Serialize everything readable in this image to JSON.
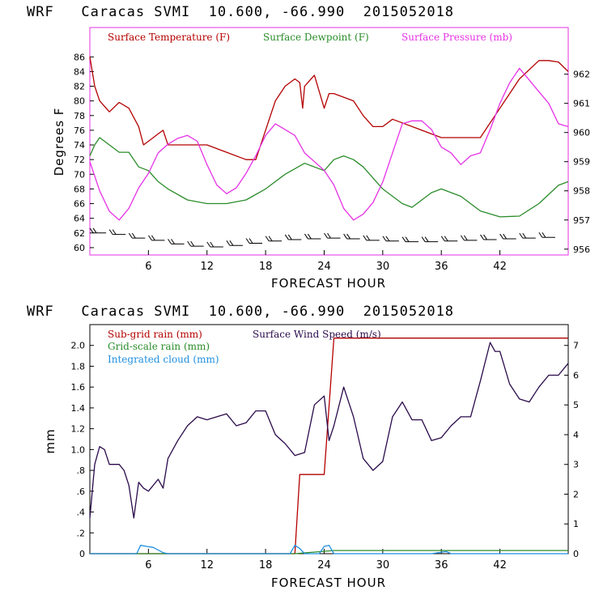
{
  "chart_data": [
    {
      "type": "line",
      "title": "WRF   Caracas SVMI  10.600, -66.990  2015052018",
      "xlabel": "FORECAST HOUR",
      "ylabel": "Degrees F",
      "xlim": [
        0,
        49
      ],
      "xticks": [
        "6",
        "12",
        "18",
        "24",
        "30",
        "36",
        "42"
      ],
      "ylim": [
        59,
        90
      ],
      "yticks": [
        "60",
        "62",
        "64",
        "66",
        "68",
        "70",
        "72",
        "74",
        "76",
        "78",
        "80",
        "82",
        "84",
        "86"
      ],
      "y2lim": [
        955.8,
        963.6
      ],
      "y2ticks": [
        "956",
        "957",
        "958",
        "959",
        "960",
        "961",
        "962"
      ],
      "legend": [
        "Surface Temperature (F)",
        "Surface Dewpoint (F)",
        "Surface Pressure (mb)"
      ],
      "colors": {
        "temperature": "#b40000",
        "dewpoint": "#2a8c2a",
        "pressure": "#e632e6",
        "wind": "#000000"
      },
      "series": [
        {
          "name": "Surface Temperature (F)",
          "axis": "left",
          "x": [
            0,
            0.5,
            1,
            2,
            3,
            4,
            5,
            5.5,
            6,
            7,
            7.5,
            8,
            10,
            12,
            14,
            16,
            17,
            18,
            19,
            20,
            21,
            21.5,
            21.8,
            22,
            23,
            24,
            24.5,
            25,
            26,
            27,
            28,
            29,
            30,
            31,
            32,
            34,
            36,
            38,
            40,
            42,
            44,
            46,
            47,
            48,
            49
          ],
          "y": [
            86,
            82,
            80,
            78.5,
            79.8,
            79,
            76.5,
            74,
            74.5,
            75.5,
            76,
            74,
            74,
            74,
            73,
            72,
            72,
            76,
            80,
            82,
            83,
            82.5,
            79,
            82,
            83.5,
            79,
            81,
            81,
            80.5,
            80,
            78,
            76.5,
            76.5,
            77.5,
            77,
            76,
            75,
            75,
            75,
            79,
            83,
            85.5,
            85.5,
            85.3,
            84
          ]
        },
        {
          "name": "Surface Dewpoint (F)",
          "axis": "left",
          "x": [
            0,
            0.5,
            1,
            1.5,
            2,
            3,
            4,
            5,
            6,
            7,
            8,
            10,
            12,
            14,
            16,
            18,
            20,
            22,
            24,
            25,
            26,
            27,
            28,
            30,
            32,
            33,
            35,
            36,
            38,
            40,
            42,
            44,
            46,
            48,
            49
          ],
          "y": [
            72.5,
            74,
            75,
            74.5,
            74,
            73,
            73,
            71,
            70.5,
            69,
            68,
            66.5,
            66,
            66,
            66.5,
            68,
            70,
            71.5,
            70.5,
            72,
            72.5,
            72,
            71,
            68,
            66,
            65.5,
            67.5,
            68,
            67,
            65,
            64.2,
            64.3,
            66,
            68.5,
            69
          ]
        },
        {
          "name": "Surface Pressure (mb)",
          "axis": "right",
          "x": [
            0,
            1,
            2,
            3,
            4,
            5,
            6,
            7,
            8,
            9,
            10,
            11,
            12,
            13,
            14,
            15,
            16,
            17,
            18,
            19,
            20,
            21,
            22,
            23,
            24,
            25,
            26,
            27,
            28,
            29,
            30,
            31,
            32,
            33,
            34,
            35,
            36,
            37,
            38,
            39,
            40,
            41,
            42,
            43,
            44,
            45,
            46,
            47,
            48,
            49
          ],
          "y": [
            959,
            958,
            957.3,
            957,
            957.4,
            958.1,
            958.6,
            959.3,
            959.6,
            959.8,
            959.9,
            959.7,
            958.9,
            958.2,
            957.9,
            958.1,
            958.6,
            959.2,
            959.9,
            960.3,
            960.1,
            959.9,
            959.3,
            959,
            958.7,
            958.2,
            957.4,
            957,
            957.2,
            957.6,
            958.3,
            959.3,
            960.3,
            960.4,
            960.4,
            960.1,
            959.5,
            959.3,
            958.9,
            959.2,
            959.3,
            960.1,
            961,
            961.7,
            962.2,
            961.8,
            961.4,
            961,
            960.3,
            960.2
          ]
        },
        {
          "name": "Wind barbs",
          "axis": "left",
          "x": [
            1,
            3,
            5,
            7,
            9,
            11,
            13,
            15,
            17,
            19,
            21,
            23,
            25,
            27,
            29,
            31,
            33,
            35,
            37,
            39,
            41,
            43,
            45,
            47
          ],
          "y": [
            62,
            61.8,
            61.3,
            61,
            60.5,
            60.2,
            60.1,
            60.3,
            60.6,
            60.9,
            61.1,
            61.2,
            61.3,
            61.2,
            61,
            60.9,
            60.8,
            60.8,
            60.9,
            61,
            61.1,
            61.2,
            61.3,
            61.4
          ]
        }
      ]
    },
    {
      "type": "line",
      "title": "WRF   Caracas SVMI  10.600, -66.990  2015052018",
      "xlabel": "FORECAST HOUR",
      "ylabel": "mm",
      "xlim": [
        0,
        49
      ],
      "xticks": [
        "6",
        "12",
        "18",
        "24",
        "30",
        "36",
        "42"
      ],
      "ylim": [
        0,
        2.2
      ],
      "yticks": [
        "0",
        ".2",
        ".4",
        ".6",
        ".8",
        "1.0",
        "1.2",
        "1.4",
        "1.6",
        "1.8",
        "2.0"
      ],
      "y2lim": [
        0,
        7.7
      ],
      "y2ticks": [
        "0",
        "1",
        "2",
        "3",
        "4",
        "5",
        "6",
        "7"
      ],
      "legend": [
        "Sub-grid rain (mm)",
        "Surface Wind Speed (m/s)",
        "Grid-scale rain (mm)",
        "Integrated cloud (mm)"
      ],
      "colors": {
        "subgrid": "#b40000",
        "wind": "#2a0a4a",
        "gridscale": "#2a8c2a",
        "cloud": "#1f8fe0"
      },
      "series": [
        {
          "name": "Sub-grid rain (mm)",
          "axis": "left",
          "x": [
            0,
            21,
            21.5,
            24,
            25,
            49
          ],
          "y": [
            0,
            0,
            0.76,
            0.76,
            2.07,
            2.07
          ]
        },
        {
          "name": "Surface Wind Speed (m/s)",
          "axis": "right",
          "x": [
            0,
            0.5,
            1,
            1.5,
            2,
            3,
            3.5,
            4,
            4.5,
            5,
            5.5,
            6,
            7,
            7.5,
            8,
            9,
            10,
            11,
            12,
            13,
            14,
            15,
            16,
            17,
            18,
            19,
            20,
            21,
            22,
            23,
            24,
            24.5,
            25,
            26,
            27,
            28,
            29,
            30,
            31,
            32,
            33,
            34,
            35,
            36,
            37,
            38,
            39,
            40,
            41,
            41.5,
            42,
            43,
            44,
            45,
            46,
            47,
            48,
            49
          ],
          "y": [
            1.2,
            3,
            3.6,
            3.5,
            3,
            3,
            2.8,
            2.3,
            1.2,
            2.4,
            2.2,
            2.1,
            2.5,
            2.2,
            3.2,
            3.8,
            4.3,
            4.6,
            4.5,
            4.6,
            4.7,
            4.3,
            4.4,
            4.8,
            4.8,
            4,
            3.7,
            3.3,
            3.4,
            5,
            5.3,
            3.8,
            4.3,
            5.6,
            4.6,
            3.2,
            2.8,
            3.1,
            4.6,
            5.1,
            4.5,
            4.5,
            3.8,
            3.9,
            4.3,
            4.6,
            4.6,
            5.8,
            7.1,
            6.8,
            6.8,
            5.7,
            5.2,
            5.1,
            5.6,
            6,
            6,
            6.4
          ]
        },
        {
          "name": "Grid-scale rain (mm)",
          "axis": "left",
          "x": [
            0,
            21,
            25,
            49
          ],
          "y": [
            0,
            0,
            0.03,
            0.03
          ]
        },
        {
          "name": "Integrated cloud (mm)",
          "axis": "left",
          "x": [
            0,
            4.8,
            5.2,
            5.8,
            6.5,
            7.5,
            8,
            20.5,
            21,
            21.5,
            22,
            23.5,
            24,
            24.5,
            25,
            35,
            36.5,
            37,
            49
          ],
          "y": [
            0,
            0,
            0.08,
            0.07,
            0.06,
            0.01,
            0,
            0,
            0.08,
            0.05,
            0,
            0,
            0.07,
            0.08,
            0,
            0,
            0.02,
            0,
            0
          ]
        }
      ]
    }
  ]
}
